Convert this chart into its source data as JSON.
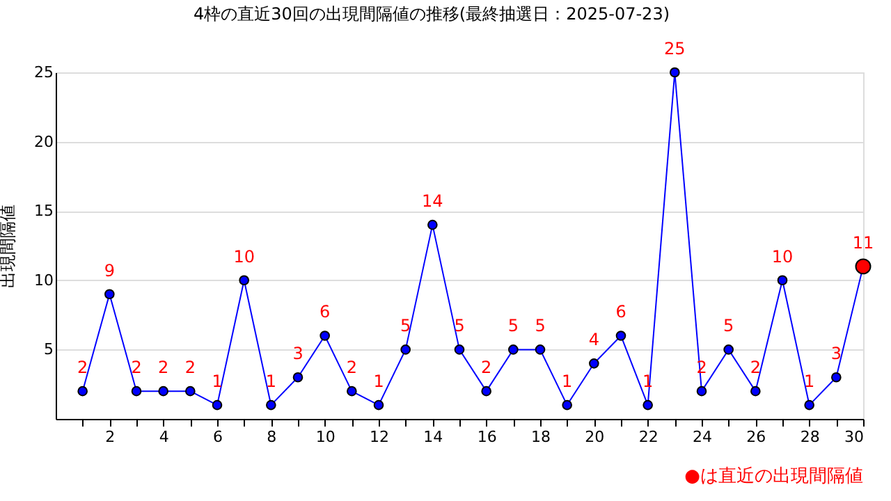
{
  "chart_data": {
    "type": "line",
    "title": "4枠の直近30回の出現間隔値の推移(最終抽選日：2025-07-23)",
    "ylabel": "出現間隔値",
    "x": [
      1,
      2,
      3,
      4,
      5,
      6,
      7,
      8,
      9,
      10,
      11,
      12,
      13,
      14,
      15,
      16,
      17,
      18,
      19,
      20,
      21,
      22,
      23,
      24,
      25,
      26,
      27,
      28,
      29,
      30
    ],
    "series": [
      {
        "color": "#0000ff",
        "values": [
          2,
          9,
          2,
          2,
          2,
          1,
          10,
          1,
          3,
          6,
          2,
          1,
          5,
          14,
          5,
          2,
          5,
          5,
          1,
          4,
          6,
          1,
          25,
          2,
          5,
          2,
          10,
          1,
          3,
          11
        ],
        "colors": [
          "#0000ff",
          "#0000ff",
          "#0000ff",
          "#0000ff",
          "#0000ff",
          "#0000ff",
          "#0000ff",
          "#0000ff",
          "#0000ff",
          "#0000ff",
          "#0000ff",
          "#0000ff",
          "#0000ff",
          "#0000ff",
          "#0000ff",
          "#0000ff",
          "#0000ff",
          "#0000ff",
          "#0000ff",
          "#0000ff",
          "#0000ff",
          "#0000ff",
          "#0000ff",
          "#0000ff",
          "#0000ff",
          "#0000ff",
          "#0000ff",
          "#0000ff",
          "#0000ff",
          "#ff0000"
        ]
      }
    ],
    "xlim": [
      0,
      30
    ],
    "xticks": [
      {
        "value": 1,
        "label": null
      },
      2,
      {
        "value": 3,
        "label": null
      },
      4,
      {
        "value": 5,
        "label": null
      },
      6,
      {
        "value": 7,
        "label": null
      },
      8,
      {
        "value": 9,
        "label": null
      },
      10,
      {
        "value": 11,
        "label": null
      },
      12,
      {
        "value": 13,
        "label": null
      },
      14,
      {
        "value": 15,
        "label": null
      },
      16,
      {
        "value": 17,
        "label": null
      },
      18,
      {
        "value": 19,
        "label": null
      },
      20,
      {
        "value": 21,
        "label": null
      },
      22,
      {
        "value": 23,
        "label": null
      },
      24,
      {
        "value": 25,
        "label": null
      },
      26,
      {
        "value": 27,
        "label": null
      },
      28,
      {
        "value": 29,
        "label": null
      },
      30
    ],
    "ylim": [
      0,
      25
    ],
    "yticks": [
      5,
      10,
      15,
      20,
      25
    ],
    "grid": "y",
    "marker": "circle",
    "line_style": "solid",
    "data_labels": true,
    "annotations": [
      "●は直近の出現間隔値"
    ]
  }
}
